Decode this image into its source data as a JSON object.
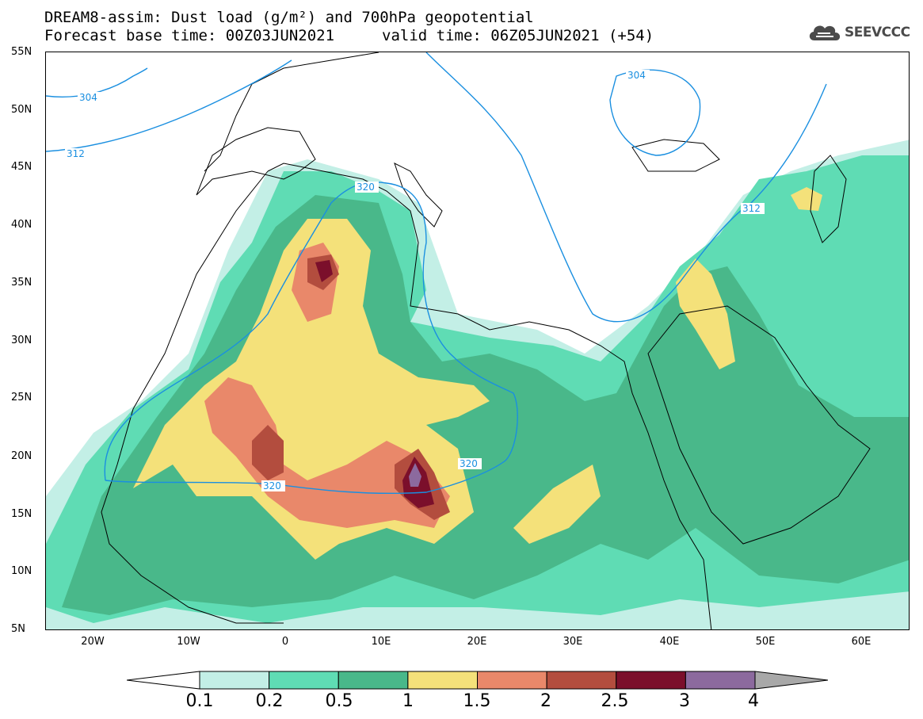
{
  "header": {
    "title_line1": "DREAM8-assim: Dust load (g/m²) and 700hPa geopotential",
    "title_line2a": "Forecast base time: 00Z03JUN2021",
    "title_line2b": "valid time: 06Z05JUN2021 (+54)"
  },
  "logo": {
    "text": "SEEVCCC",
    "icon": "cloud-icon"
  },
  "map": {
    "projection": "lat-lon",
    "lon_range": [
      -25,
      65
    ],
    "lat_range": [
      5,
      55
    ],
    "lat_labels": [
      "55N",
      "50N",
      "45N",
      "40N",
      "35N",
      "30N",
      "25N",
      "20N",
      "15N",
      "10N",
      "5N"
    ],
    "lon_labels": [
      "20W",
      "10W",
      "0",
      "10E",
      "20E",
      "30E",
      "40E",
      "50E",
      "60E"
    ],
    "contour_labels": [
      "304",
      "312",
      "320",
      "320",
      "320",
      "312",
      "304"
    ],
    "contour_color": "#1a8fe0"
  },
  "colorbar": {
    "labels": [
      "0.1",
      "0.2",
      "0.5",
      "1",
      "1.5",
      "2",
      "2.5",
      "3",
      "4"
    ],
    "colors": [
      "#c3efe6",
      "#5fdcb4",
      "#49b88a",
      "#f4e17a",
      "#e9886a",
      "#b34d3e",
      "#7b0f2b",
      "#8c6a9e",
      "#a8a8a8"
    ]
  }
}
